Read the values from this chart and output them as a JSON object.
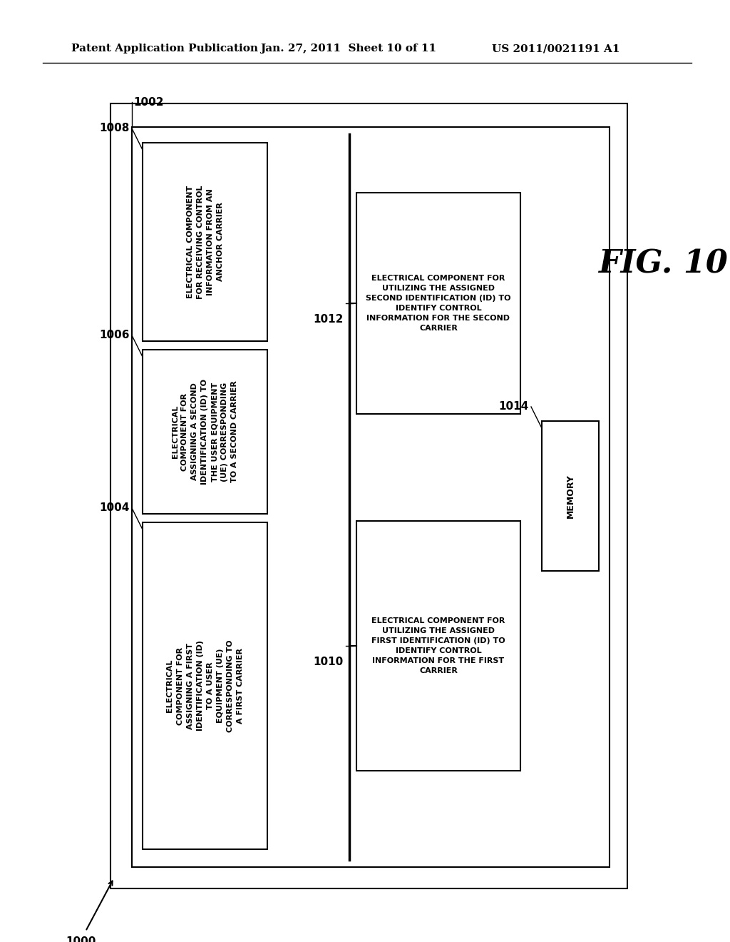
{
  "bg_color": "#ffffff",
  "header_left": "Patent Application Publication",
  "header_center": "Jan. 27, 2011  Sheet 10 of 11",
  "header_right": "US 2011/0021191 A1",
  "fig_label": "FIG. 10",
  "outer_box_label": "1000",
  "inner_box_label": "1002",
  "label_1004": "1004",
  "label_1006": "1006",
  "label_1008": "1008",
  "label_1010": "1010",
  "label_1012": "1012",
  "label_1014": "1014",
  "box1_text": "ELECTRICAL\nCOMPONENT FOR\nASSIGNING A FIRST\nIDENTIFICATION (ID)\nTO A USER\nEQUIPMENT (UE)\nCORRESPONDING TO\nA FIRST CARRIER",
  "box2_text": "ELECTRICAL\nCOMPONENT FOR\nASSIGNING A SECOND\nIDENTIFICATION (ID) TO\nTHE USER EQUIPMENT\n(UE) CORRESPONDING\nTO A SECOND CARRIER",
  "box3_text": "ELECTRICAL COMPONENT\nFOR RECEIVING CONTROL\nINFORMATION FROM AN\nANCHOR CARRIER",
  "box4_text": "ELECTRICAL COMPONENT FOR\nUTILIZING THE ASSIGNED\nFIRST IDENTIFICATION (ID) TO\nIDENTIFY CONTROL\nINFORMATION FOR THE FIRST\nCARRIER",
  "box5_text": "ELECTRICAL COMPONENT FOR\nUTILIZING THE ASSIGNED\nSECOND IDENTIFICATION (ID) TO\nIDENTIFY CONTROL\nINFORMATION FOR THE SECOND\nCARRIER",
  "memory_text": "MEMORY"
}
